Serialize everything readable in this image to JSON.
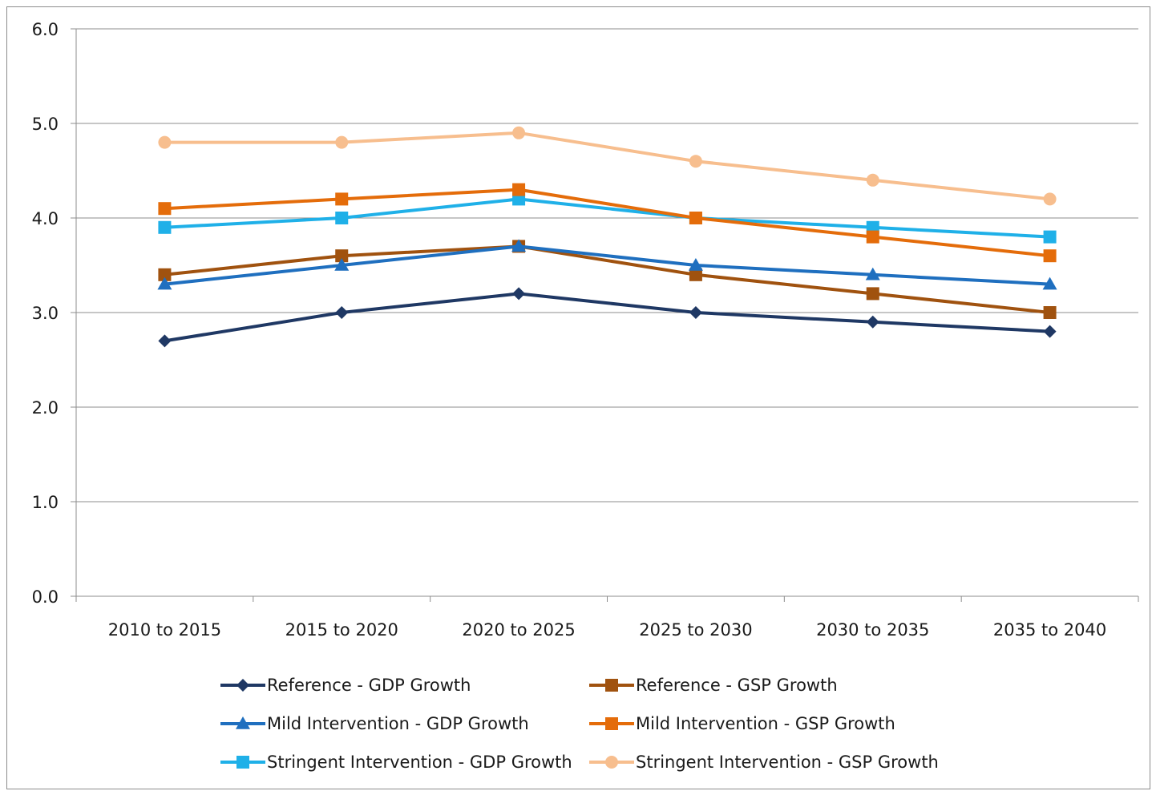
{
  "chart_data": {
    "type": "line",
    "title": "",
    "xlabel": "",
    "ylabel": "",
    "ylim": [
      0,
      6
    ],
    "yticks": [
      0,
      1,
      2,
      3,
      4,
      5,
      6
    ],
    "ytick_labels": [
      "0.0",
      "1.0",
      "2.0",
      "3.0",
      "4.0",
      "5.0",
      "6.0"
    ],
    "grid": "horizontal",
    "legend_position": "bottom",
    "categories": [
      "2010 to 2015",
      "2015 to 2020",
      "2020 to 2025",
      "2025 to 2030",
      "2030 to 2035",
      "2035 to 2040"
    ],
    "series": [
      {
        "name": "Reference - GDP Growth",
        "values": [
          2.7,
          3.0,
          3.2,
          3.0,
          2.9,
          2.8
        ],
        "color": "#1f3864",
        "marker": "diamond"
      },
      {
        "name": "Reference - GSP Growth",
        "values": [
          3.4,
          3.6,
          3.7,
          3.4,
          3.2,
          3.0
        ],
        "color": "#a0520f",
        "marker": "square"
      },
      {
        "name": "Mild Intervention - GDP Growth",
        "values": [
          3.3,
          3.5,
          3.7,
          3.5,
          3.4,
          3.3
        ],
        "color": "#1f6fbf",
        "marker": "triangle"
      },
      {
        "name": "Mild Intervention - GSP Growth",
        "values": [
          4.1,
          4.2,
          4.3,
          4.0,
          3.8,
          3.6
        ],
        "color": "#e46c0a",
        "marker": "square"
      },
      {
        "name": "Stringent Intervention - GDP Growth",
        "values": [
          3.9,
          4.0,
          4.2,
          4.0,
          3.9,
          3.8
        ],
        "color": "#1fb0e8",
        "marker": "square"
      },
      {
        "name": "Stringent Intervention - GSP Growth",
        "values": [
          4.8,
          4.8,
          4.9,
          4.6,
          4.4,
          4.2
        ],
        "color": "#f7be8e",
        "marker": "circle"
      }
    ]
  }
}
